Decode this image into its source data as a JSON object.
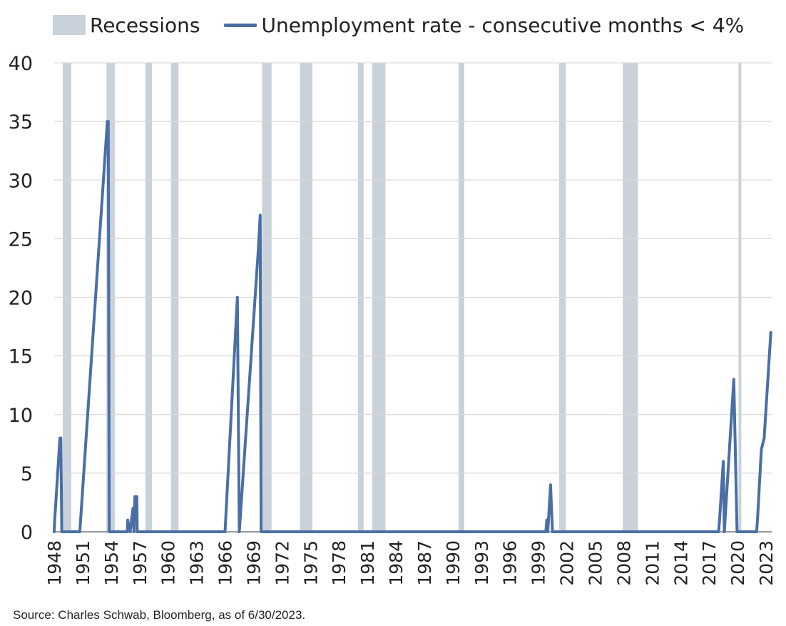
{
  "chart_data": {
    "type": "line",
    "title": "",
    "xlabel": "",
    "ylabel": "",
    "ylim": [
      0,
      40
    ],
    "xlim": [
      1948.0,
      2023.6
    ],
    "y_ticks": [
      0,
      5,
      10,
      15,
      20,
      25,
      30,
      35,
      40
    ],
    "x_ticks": [
      1948,
      1951,
      1954,
      1957,
      1960,
      1963,
      1966,
      1969,
      1972,
      1975,
      1978,
      1981,
      1984,
      1987,
      1990,
      1993,
      1996,
      1999,
      2002,
      2005,
      2008,
      2011,
      2014,
      2017,
      2020,
      2023
    ],
    "grid": true,
    "legend": [
      {
        "label": "Recessions",
        "kind": "band",
        "color": "#c9d1da"
      },
      {
        "label": "Unemployment rate - consecutive months < 4%",
        "kind": "line",
        "color": "#4a6fa5"
      }
    ],
    "recessions": [
      [
        1948.9,
        1949.8
      ],
      [
        1953.5,
        1954.4
      ],
      [
        1957.6,
        1958.3
      ],
      [
        1960.3,
        1961.1
      ],
      [
        1969.9,
        1970.9
      ],
      [
        1973.9,
        1975.2
      ],
      [
        1980.0,
        1980.6
      ],
      [
        1981.5,
        1982.9
      ],
      [
        1990.6,
        1991.2
      ],
      [
        2001.2,
        2001.9
      ],
      [
        2007.9,
        2009.5
      ],
      [
        2020.1,
        2020.4
      ]
    ],
    "series": [
      {
        "name": "Unemployment rate - consecutive months < 4%",
        "x": [
          1948.0,
          1948.05,
          1948.6,
          1948.7,
          1948.8,
          1950.7,
          1953.6,
          1953.7,
          1953.8,
          1955.7,
          1955.75,
          1956.0,
          1956.3,
          1956.4,
          1956.5,
          1956.7,
          1956.75,
          1956.8,
          1966.0,
          1967.3,
          1967.5,
          1969.5,
          1969.7,
          1969.8,
          1999.8,
          1999.9,
          2000.0,
          2000.3,
          2000.5,
          2018.0,
          2018.1,
          2018.5,
          2018.6,
          2019.6,
          2019.95,
          2020.0,
          2020.2,
          2022.0,
          2022.1,
          2022.5,
          2022.8,
          2023.5
        ],
        "y": [
          0,
          1,
          8,
          8,
          0,
          0,
          35,
          35,
          0,
          0,
          1,
          0,
          2,
          0,
          3,
          3,
          0,
          0,
          0,
          20,
          0,
          24,
          27,
          0,
          0,
          1,
          0,
          4,
          0,
          0,
          1,
          6,
          0,
          13,
          0,
          0,
          0,
          0,
          1,
          7,
          8,
          17
        ]
      }
    ]
  },
  "legend": {
    "recessions_label": "Recessions",
    "line_label": "Unemployment rate - consecutive months < 4%"
  },
  "footer": {
    "source": "Source: Charles Schwab, Bloomberg, as of 6/30/2023."
  },
  "colors": {
    "recession_band": "#c9d1da",
    "line": "#4a6fa5",
    "grid": "#d9d9d9",
    "baseline": "#9a9a9a",
    "text": "#222222"
  }
}
